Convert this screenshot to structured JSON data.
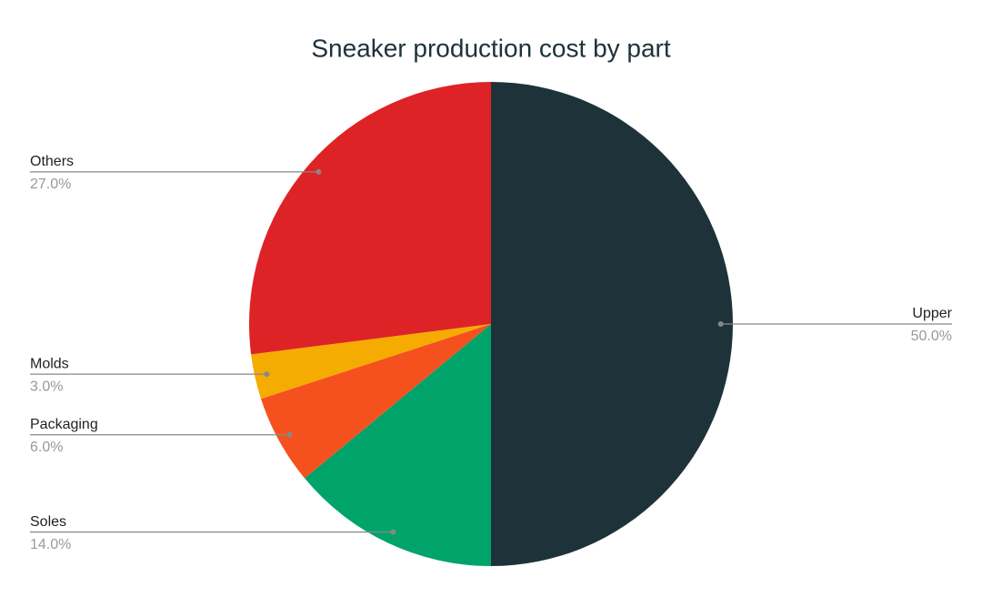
{
  "chart_data": {
    "type": "pie",
    "title": "Sneaker production cost by part",
    "categories": [
      "Upper",
      "Soles",
      "Packaging",
      "Molds",
      "Others"
    ],
    "values": [
      50,
      14,
      6,
      3,
      27
    ],
    "value_labels": [
      "50.0%",
      "14.0%",
      "6.0%",
      "3.0%",
      "27.0%"
    ],
    "colors": [
      "#1e3239",
      "#00a36a",
      "#f4511e",
      "#f6ab00",
      "#de2326"
    ]
  }
}
